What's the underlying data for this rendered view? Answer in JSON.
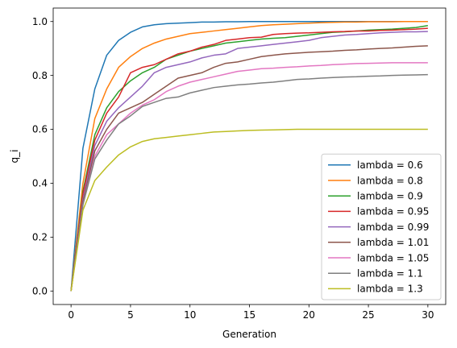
{
  "chart_data": {
    "type": "line",
    "title": "",
    "xlabel": "Generation",
    "ylabel": "q_i",
    "xlim": [
      -1.5,
      31.5
    ],
    "ylim": [
      -0.05,
      1.05
    ],
    "xticks": [
      0,
      5,
      10,
      15,
      20,
      25,
      30
    ],
    "xtick_labels": [
      "0",
      "5",
      "10",
      "15",
      "20",
      "25",
      "30"
    ],
    "yticks": [
      0.0,
      0.2,
      0.4,
      0.6,
      0.8,
      1.0
    ],
    "ytick_labels": [
      "0.0",
      "0.2",
      "0.4",
      "0.6",
      "0.8",
      "1.0"
    ],
    "grid": false,
    "legend_position": "lower-right",
    "x": [
      0,
      1,
      2,
      3,
      4,
      5,
      6,
      7,
      8,
      9,
      10,
      11,
      12,
      13,
      14,
      15,
      16,
      17,
      18,
      19,
      20,
      21,
      22,
      23,
      24,
      25,
      26,
      27,
      28,
      29,
      30
    ],
    "series": [
      {
        "name": "lambda = 0.6",
        "color": "#1f77b4",
        "values": [
          0.0,
          0.53,
          0.75,
          0.875,
          0.93,
          0.96,
          0.98,
          0.988,
          0.992,
          0.994,
          0.996,
          0.998,
          0.998,
          0.999,
          0.999,
          1.0,
          1.0,
          1.0,
          1.0,
          1.0,
          1.0,
          1.0,
          1.0,
          1.0,
          1.0,
          1.0,
          1.0,
          1.0,
          1.0,
          1.0,
          1.0
        ]
      },
      {
        "name": "lambda = 0.8",
        "color": "#ff7f0e",
        "values": [
          0.0,
          0.4,
          0.64,
          0.75,
          0.83,
          0.87,
          0.9,
          0.92,
          0.935,
          0.945,
          0.955,
          0.96,
          0.965,
          0.97,
          0.975,
          0.98,
          0.985,
          0.988,
          0.99,
          0.992,
          0.994,
          0.996,
          0.997,
          0.998,
          0.998,
          0.999,
          0.999,
          0.999,
          1.0,
          1.0,
          1.0
        ]
      },
      {
        "name": "lambda = 0.9",
        "color": "#2ca02c",
        "values": [
          0.0,
          0.37,
          0.58,
          0.68,
          0.74,
          0.78,
          0.81,
          0.83,
          0.86,
          0.875,
          0.89,
          0.9,
          0.91,
          0.92,
          0.925,
          0.93,
          0.935,
          0.938,
          0.94,
          0.945,
          0.95,
          0.955,
          0.96,
          0.962,
          0.965,
          0.968,
          0.97,
          0.972,
          0.975,
          0.978,
          0.985
        ]
      },
      {
        "name": "lambda = 0.95",
        "color": "#d62728",
        "values": [
          0.0,
          0.36,
          0.56,
          0.66,
          0.72,
          0.81,
          0.83,
          0.84,
          0.86,
          0.88,
          0.89,
          0.905,
          0.915,
          0.93,
          0.935,
          0.94,
          0.942,
          0.952,
          0.955,
          0.957,
          0.958,
          0.96,
          0.962,
          0.963,
          0.965,
          0.965,
          0.967,
          0.968,
          0.97,
          0.972,
          0.975
        ]
      },
      {
        "name": "lambda = 0.99",
        "color": "#9467bd",
        "values": [
          0.0,
          0.34,
          0.54,
          0.63,
          0.68,
          0.72,
          0.76,
          0.81,
          0.83,
          0.84,
          0.85,
          0.865,
          0.875,
          0.88,
          0.9,
          0.905,
          0.91,
          0.915,
          0.92,
          0.925,
          0.93,
          0.94,
          0.945,
          0.95,
          0.952,
          0.955,
          0.958,
          0.96,
          0.962,
          0.962,
          0.963
        ]
      },
      {
        "name": "lambda = 1.01",
        "color": "#8c564b",
        "values": [
          0.0,
          0.33,
          0.52,
          0.6,
          0.66,
          0.68,
          0.7,
          0.73,
          0.76,
          0.79,
          0.8,
          0.81,
          0.83,
          0.845,
          0.85,
          0.86,
          0.87,
          0.875,
          0.88,
          0.883,
          0.886,
          0.888,
          0.89,
          0.893,
          0.895,
          0.898,
          0.9,
          0.902,
          0.905,
          0.908,
          0.91
        ]
      },
      {
        "name": "lambda = 1.05",
        "color": "#e377c2",
        "values": [
          0.0,
          0.32,
          0.5,
          0.58,
          0.62,
          0.66,
          0.69,
          0.71,
          0.74,
          0.76,
          0.775,
          0.785,
          0.795,
          0.805,
          0.815,
          0.82,
          0.825,
          0.827,
          0.83,
          0.832,
          0.835,
          0.837,
          0.84,
          0.842,
          0.844,
          0.845,
          0.846,
          0.847,
          0.847,
          0.847,
          0.847
        ]
      },
      {
        "name": "lambda = 1.1",
        "color": "#7f7f7f",
        "values": [
          0.0,
          0.32,
          0.49,
          0.56,
          0.62,
          0.65,
          0.685,
          0.7,
          0.715,
          0.72,
          0.735,
          0.745,
          0.755,
          0.76,
          0.765,
          0.768,
          0.772,
          0.775,
          0.78,
          0.785,
          0.787,
          0.79,
          0.792,
          0.794,
          0.795,
          0.797,
          0.798,
          0.8,
          0.801,
          0.802,
          0.803
        ]
      },
      {
        "name": "lambda = 1.3",
        "color": "#bcbd22",
        "values": [
          0.0,
          0.3,
          0.41,
          0.46,
          0.505,
          0.535,
          0.555,
          0.565,
          0.57,
          0.575,
          0.58,
          0.585,
          0.59,
          0.592,
          0.594,
          0.596,
          0.597,
          0.598,
          0.599,
          0.6,
          0.6,
          0.6,
          0.6,
          0.6,
          0.6,
          0.6,
          0.6,
          0.6,
          0.6,
          0.6,
          0.6
        ]
      }
    ]
  }
}
